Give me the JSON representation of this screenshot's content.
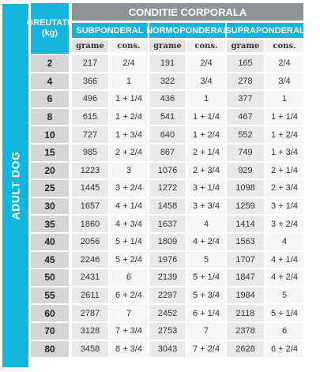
{
  "side_label": "ADULT DOG",
  "header": {
    "weight_line1": "GREUTATE",
    "weight_line2": "(kg)",
    "condition": "CONDITIE CORPORALA",
    "groups": [
      "SUBPONDERAL",
      "NORMOPONDERAL",
      "SUPRAPONDERAL"
    ],
    "subheaders": [
      "grame",
      "cons.",
      "grame",
      "cons.",
      "grame",
      "cons."
    ]
  },
  "rows": [
    {
      "weight": "2",
      "values": [
        "217",
        "2/4",
        "191",
        "2/4",
        "165",
        "2/4"
      ]
    },
    {
      "weight": "4",
      "values": [
        "366",
        "1",
        "322",
        "3/4",
        "278",
        "3/4"
      ]
    },
    {
      "weight": "6",
      "values": [
        "496",
        "1 + 1/4",
        "436",
        "1",
        "377",
        "1"
      ]
    },
    {
      "weight": "8",
      "values": [
        "615",
        "1 + 2/4",
        "541",
        "1 + 1/4",
        "467",
        "1 + 1/4"
      ]
    },
    {
      "weight": "10",
      "values": [
        "727",
        "1 + 3/4",
        "640",
        "1 + 2/4",
        "552",
        "1 + 2/4"
      ]
    },
    {
      "weight": "15",
      "values": [
        "985",
        "2 + 2/4",
        "867",
        "2 + 1/4",
        "749",
        "1 + 3/4"
      ]
    },
    {
      "weight": "20",
      "values": [
        "1223",
        "3",
        "1076",
        "2 + 3/4",
        "929",
        "2 + 1/4"
      ]
    },
    {
      "weight": "25",
      "values": [
        "1445",
        "3 + 2/4",
        "1272",
        "3 + 1/4",
        "1098",
        "2 + 3/4"
      ]
    },
    {
      "weight": "30",
      "values": [
        "1657",
        "4 + 1/4",
        "1458",
        "3 + 3/4",
        "1259",
        "3 + 1/4"
      ]
    },
    {
      "weight": "35",
      "values": [
        "1860",
        "4 + 3/4",
        "1637",
        "4",
        "1414",
        "3 + 2/4"
      ]
    },
    {
      "weight": "40",
      "values": [
        "2056",
        "5 + 1/4",
        "1809",
        "4 + 2/4",
        "1563",
        "4"
      ]
    },
    {
      "weight": "45",
      "values": [
        "2246",
        "5 + 2/4",
        "1976",
        "5",
        "1707",
        "4 + 1/4"
      ]
    },
    {
      "weight": "50",
      "values": [
        "2431",
        "6",
        "2139",
        "5 + 1/4",
        "1847",
        "4 + 2/4"
      ]
    },
    {
      "weight": "55",
      "values": [
        "2611",
        "6 + 2/4",
        "2297",
        "5 + 3/4",
        "1984",
        "5"
      ]
    },
    {
      "weight": "60",
      "values": [
        "2787",
        "7",
        "2452",
        "6 + 1/4",
        "2118",
        "5 + 1/4"
      ]
    },
    {
      "weight": "70",
      "values": [
        "3128",
        "7 + 3/4",
        "2753",
        "7",
        "2378",
        "6"
      ]
    },
    {
      "weight": "80",
      "values": [
        "3458",
        "8 + 3/4",
        "3043",
        "7 + 2/4",
        "2628",
        "6 + 2/4"
      ]
    }
  ]
}
